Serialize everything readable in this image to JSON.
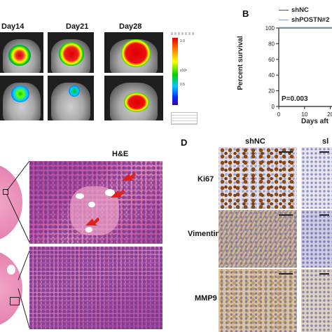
{
  "panel_a": {
    "day_labels": [
      "Day14",
      "Day21",
      "Day28"
    ],
    "colorbar_ticks": [
      "1.0",
      "0.5"
    ],
    "colorbar_exponent": "x10⁸"
  },
  "panel_b": {
    "letter": "B",
    "legend": [
      "shNC",
      "shPOSTN#2"
    ],
    "y_label": "Percent survival",
    "x_label": "Days aft",
    "p_value": "P=0.003",
    "colors": {
      "shNC": "#555555",
      "shPOSTN": "#7f9fd0"
    }
  },
  "chart_data": {
    "type": "line",
    "xlim": [
      0,
      25
    ],
    "ylim": [
      0,
      100
    ],
    "x_ticks": [
      "0",
      "10",
      "20"
    ],
    "y_ticks": [
      "0",
      "20",
      "40",
      "60",
      "80",
      "100"
    ],
    "series": [
      {
        "name": "shNC",
        "x": [
          0,
          25
        ],
        "y": [
          100,
          100
        ]
      },
      {
        "name": "shPOSTN#2",
        "x": [
          0,
          25
        ],
        "y": [
          100,
          100
        ]
      }
    ]
  },
  "panel_c": {
    "title": "H&E"
  },
  "panel_d": {
    "letter": "D",
    "col_headers": [
      "shNC",
      "sl"
    ],
    "row_labels": [
      "Ki67",
      "Vimentin",
      "MMP9"
    ]
  }
}
